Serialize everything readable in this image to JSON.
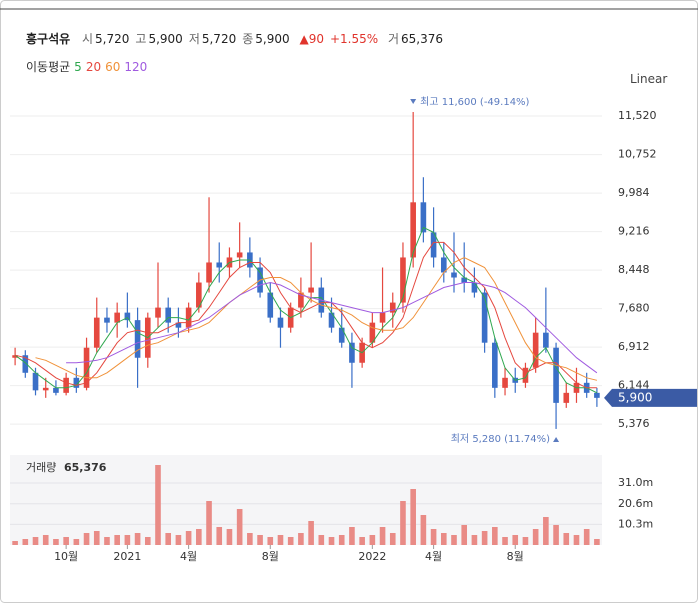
{
  "header": {
    "name": "흥구석유",
    "items": [
      {
        "key": "시",
        "value": "5,720"
      },
      {
        "key": "고",
        "value": "5,900"
      },
      {
        "key": "저",
        "value": "5,720"
      },
      {
        "key": "종",
        "value": "5,900"
      }
    ],
    "change": "90",
    "change_pct": "+1.55%",
    "volume_key": "거",
    "volume": "65,376"
  },
  "ma_title": "이동평균",
  "scale_mode": "Linear",
  "chart_data": {
    "type": "candlestick",
    "up_color": "#e5483f",
    "down_color": "#3a6fc7",
    "x": [
      0,
      1,
      2,
      3,
      4,
      5,
      6,
      7,
      8,
      9,
      10,
      11,
      12,
      13,
      14,
      15,
      16,
      17,
      18,
      19,
      20,
      21,
      22,
      23,
      24,
      25,
      26,
      27,
      28,
      29,
      30,
      31,
      32,
      33,
      34,
      35,
      36,
      37,
      38,
      39,
      40,
      41,
      42,
      43,
      44,
      45,
      46,
      47,
      48,
      49,
      50,
      51,
      52,
      53,
      54,
      55,
      56,
      57
    ],
    "xlim": [
      -0.5,
      57.5
    ],
    "xticks": [
      {
        "value": 5,
        "label": "10월"
      },
      {
        "value": 11,
        "label": "2021"
      },
      {
        "value": 17,
        "label": "4월"
      },
      {
        "value": 25,
        "label": "8월"
      },
      {
        "value": 35,
        "label": "2022"
      },
      {
        "value": 41,
        "label": "4월"
      },
      {
        "value": 49,
        "label": "8월"
      }
    ],
    "ylim": [
      4900,
      11940
    ],
    "yticks": [
      {
        "value": 5376,
        "label": "5,376"
      },
      {
        "value": 6144,
        "label": "6,144"
      },
      {
        "value": 6912,
        "label": "6,912"
      },
      {
        "value": 7680,
        "label": "7,680"
      },
      {
        "value": 8448,
        "label": "8,448"
      },
      {
        "value": 9216,
        "label": "9,216"
      },
      {
        "value": 9984,
        "label": "9,984"
      },
      {
        "value": 10752,
        "label": "10,752"
      },
      {
        "value": 11520,
        "label": "11,520"
      }
    ],
    "ohlc": [
      [
        6700,
        6900,
        6550,
        6750
      ],
      [
        6750,
        6850,
        6300,
        6400
      ],
      [
        6400,
        6500,
        5950,
        6050
      ],
      [
        6050,
        6300,
        5900,
        6100
      ],
      [
        6100,
        6250,
        5950,
        6000
      ],
      [
        6000,
        6400,
        5950,
        6300
      ],
      [
        6300,
        6500,
        6000,
        6100
      ],
      [
        6100,
        7100,
        6050,
        6900
      ],
      [
        6900,
        7900,
        6800,
        7500
      ],
      [
        7500,
        7700,
        7200,
        7400
      ],
      [
        7400,
        7800,
        7100,
        7600
      ],
      [
        7600,
        8000,
        7300,
        7450
      ],
      [
        7450,
        7700,
        6100,
        6700
      ],
      [
        6700,
        7600,
        6500,
        7500
      ],
      [
        7500,
        8600,
        7300,
        7700
      ],
      [
        7700,
        7900,
        7200,
        7400
      ],
      [
        7400,
        7700,
        7100,
        7300
      ],
      [
        7300,
        7800,
        7200,
        7700
      ],
      [
        7700,
        8400,
        7600,
        8200
      ],
      [
        8200,
        9900,
        8000,
        8600
      ],
      [
        8600,
        9000,
        8200,
        8500
      ],
      [
        8500,
        8900,
        8300,
        8700
      ],
      [
        8700,
        9400,
        8500,
        8800
      ],
      [
        8800,
        9100,
        8300,
        8500
      ],
      [
        8500,
        8700,
        7900,
        8000
      ],
      [
        8000,
        8200,
        7400,
        7500
      ],
      [
        7500,
        7700,
        6900,
        7300
      ],
      [
        7300,
        7800,
        7200,
        7700
      ],
      [
        7700,
        8300,
        7500,
        8000
      ],
      [
        8000,
        9000,
        7800,
        8100
      ],
      [
        8100,
        8300,
        7500,
        7600
      ],
      [
        7600,
        7900,
        7200,
        7300
      ],
      [
        7300,
        7700,
        6900,
        7000
      ],
      [
        7000,
        7200,
        6100,
        6600
      ],
      [
        6600,
        7100,
        6500,
        7000
      ],
      [
        7000,
        7600,
        6900,
        7400
      ],
      [
        7400,
        8500,
        7200,
        7600
      ],
      [
        7600,
        8000,
        7300,
        7800
      ],
      [
        7800,
        9000,
        7600,
        8700
      ],
      [
        8700,
        11600,
        8500,
        9800
      ],
      [
        9800,
        10300,
        9000,
        9200
      ],
      [
        9200,
        9700,
        8500,
        8700
      ],
      [
        8700,
        9000,
        8200,
        8400
      ],
      [
        8400,
        9200,
        8000,
        8300
      ],
      [
        8300,
        9000,
        8000,
        8200
      ],
      [
        8200,
        8500,
        7900,
        8000
      ],
      [
        8000,
        8100,
        6800,
        7000
      ],
      [
        7000,
        7100,
        5900,
        6100
      ],
      [
        6100,
        6500,
        5950,
        6300
      ],
      [
        6300,
        6500,
        6000,
        6200
      ],
      [
        6200,
        6600,
        6100,
        6500
      ],
      [
        6500,
        7500,
        6400,
        7200
      ],
      [
        7200,
        8100,
        6800,
        6900
      ],
      [
        6900,
        7000,
        5280,
        5800
      ],
      [
        5800,
        6200,
        5700,
        6000
      ],
      [
        6000,
        6500,
        5800,
        6200
      ],
      [
        6200,
        6400,
        5900,
        6000
      ],
      [
        6000,
        6100,
        5720,
        5900
      ]
    ],
    "series": [
      {
        "name": "5",
        "color": "#2fa84f",
        "values": [
          6750,
          6600,
          6400,
          6250,
          6100,
          6100,
          6150,
          6400,
          6800,
          7100,
          7400,
          7500,
          7200,
          7100,
          7300,
          7500,
          7500,
          7450,
          7700,
          8100,
          8400,
          8600,
          8650,
          8650,
          8400,
          8000,
          7650,
          7500,
          7600,
          7900,
          7900,
          7600,
          7300,
          6900,
          6800,
          7000,
          7300,
          7500,
          7900,
          8800,
          9300,
          9200,
          8800,
          8500,
          8300,
          8200,
          7900,
          7100,
          6500,
          6250,
          6300,
          6700,
          6900,
          6500,
          6200,
          6100,
          6100,
          6000
        ]
      },
      {
        "name": "20",
        "color": "#e5483f",
        "values": [
          6750,
          6700,
          6600,
          6450,
          6300,
          6200,
          6150,
          6200,
          6400,
          6700,
          7000,
          7200,
          7250,
          7200,
          7200,
          7300,
          7400,
          7400,
          7450,
          7700,
          8000,
          8300,
          8500,
          8600,
          8600,
          8400,
          8000,
          7700,
          7600,
          7700,
          7800,
          7800,
          7600,
          7300,
          7000,
          6900,
          7000,
          7200,
          7500,
          8100,
          8700,
          9000,
          9000,
          8800,
          8500,
          8300,
          8100,
          7700,
          7100,
          6600,
          6400,
          6500,
          6600,
          6600,
          6400,
          6200,
          6100,
          6100
        ]
      },
      {
        "name": "60",
        "color": "#f0923a",
        "values": [
          null,
          null,
          6700,
          6650,
          6550,
          6450,
          6350,
          6300,
          6300,
          6400,
          6550,
          6700,
          6850,
          6950,
          7000,
          7100,
          7200,
          7250,
          7300,
          7400,
          7600,
          7800,
          7950,
          8100,
          8250,
          8300,
          8300,
          8200,
          8000,
          7850,
          7750,
          7700,
          7650,
          7550,
          7400,
          7300,
          7250,
          7250,
          7300,
          7500,
          7800,
          8100,
          8400,
          8600,
          8700,
          8600,
          8500,
          8200,
          7800,
          7400,
          7000,
          6700,
          6600,
          6550,
          6500,
          6400,
          6300,
          6250
        ]
      },
      {
        "name": "120",
        "color": "#a05be0",
        "values": [
          null,
          null,
          null,
          null,
          null,
          6600,
          6600,
          6620,
          6650,
          6700,
          6800,
          6900,
          7000,
          7050,
          7100,
          7150,
          7200,
          7300,
          7400,
          7500,
          7650,
          7800,
          7950,
          8050,
          8150,
          8200,
          8150,
          8050,
          7950,
          7900,
          7850,
          7800,
          7750,
          7700,
          7650,
          7600,
          7600,
          7650,
          7700,
          7800,
          7900,
          8000,
          8100,
          8150,
          8200,
          8200,
          8150,
          8100,
          8000,
          7850,
          7700,
          7500,
          7300,
          7100,
          6900,
          6700,
          6550,
          6400
        ]
      }
    ],
    "price_tag": {
      "value": 5900,
      "label": "5,900"
    },
    "max_label": {
      "x": 39,
      "value": 11600,
      "label": "최고 11,600 (-49.14%)"
    },
    "min_label": {
      "x": 53,
      "value": 5280,
      "label": "최저 5,280 (11.74%)"
    },
    "volume": {
      "title": "거래량",
      "last": "65,376",
      "color": "#e98b86",
      "ylim": [
        0,
        45
      ],
      "yticks": [
        {
          "value": 10.3,
          "label": "10.3m"
        },
        {
          "value": 20.6,
          "label": "20.6m"
        },
        {
          "value": 31.0,
          "label": "31.0m"
        }
      ],
      "values": [
        2,
        3,
        4,
        5,
        3,
        4,
        3,
        6,
        7,
        4,
        5,
        5,
        6,
        4,
        40,
        6,
        5,
        7,
        8,
        22,
        9,
        8,
        18,
        6,
        5,
        4,
        5,
        4,
        6,
        12,
        5,
        4,
        5,
        9,
        4,
        5,
        9,
        6,
        22,
        28,
        15,
        8,
        6,
        5,
        10,
        5,
        7,
        9,
        4,
        5,
        4,
        8,
        14,
        10,
        6,
        5,
        8,
        3
      ]
    }
  }
}
